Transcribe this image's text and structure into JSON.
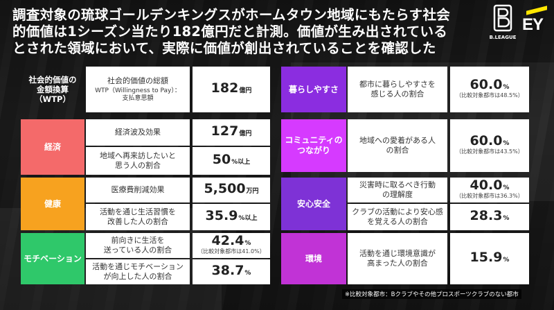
{
  "headline": "調査対象の琉球ゴールデンキングスがホームタウン地域にもたらす社会\n的価値は1シーズン当たり182億円だと計測。価値が生み出されている\nとされた領域において、実際に価値が創出されていることを確認した",
  "logos": {
    "bleague": "B.LEAGUE",
    "ey": "EY"
  },
  "colors": {
    "keizai": "#f46a6a",
    "kenko": "#f7a21f",
    "motivation": "#2fc86a",
    "kurashi": "#8b2de0",
    "community": "#d63aff",
    "anzen": "#7e32d6",
    "kankyo": "#c133d6"
  },
  "wtp": {
    "label": "社会的価値の\n金額換算\n（WTP）",
    "desc_line1": "社会的価値の総額",
    "desc_line2": "WTP（Willingness to Pay）：\n支払意思額",
    "value": "182",
    "unit": "億円"
  },
  "keizai": {
    "label": "経済",
    "rows": [
      {
        "desc": "経済波及効果",
        "value": "127",
        "unit": "億円"
      },
      {
        "desc": "地域へ再来訪したいと\n思う人の割合",
        "value": "50",
        "unit": "%以上"
      }
    ]
  },
  "kenko": {
    "label": "健康",
    "rows": [
      {
        "desc": "医療費削減効果",
        "value": "5,500",
        "unit": "万円"
      },
      {
        "desc": "活動を通じ生活習慣を\n改善した人の割合",
        "value": "35.9",
        "unit": "%以上"
      }
    ]
  },
  "motivation": {
    "label": "モチベーション",
    "rows": [
      {
        "desc": "前向きに生活を\n送っている人の割合",
        "value": "42.4",
        "unit": "%",
        "note": "（比較対象都市は41.0%）"
      },
      {
        "desc": "活動を通じモチベーション\nが向上した人の割合",
        "value": "38.7",
        "unit": "%"
      }
    ]
  },
  "kurashi": {
    "label": "暮らしやすさ",
    "desc": "都市に暮らしやすさを\n感じる人の割合",
    "value": "60.0",
    "unit": "%",
    "note": "（比較対象都市は48.5%）"
  },
  "community": {
    "label": "コミュニティの\nつながり",
    "desc": "地域への愛着がある人\nの割合",
    "value": "60.0",
    "unit": "%",
    "note": "（比較対象都市は43.5%）"
  },
  "anzen": {
    "label": "安心安全",
    "rows": [
      {
        "desc": "災害時に取るべき行動\nの理解度",
        "value": "40.0",
        "unit": "%",
        "note": "（比較対象都市は36.3%）"
      },
      {
        "desc": "クラブの活動により安心感\nを覚える人の割合",
        "value": "28.3",
        "unit": "%"
      }
    ]
  },
  "kankyo": {
    "label": "環境",
    "desc": "活動を通じ環境意識が\n高まった人の割合",
    "value": "15.9",
    "unit": "%"
  },
  "footnote": "※比較対象都市：Bクラブやその他プロスポーツクラブのない都市"
}
